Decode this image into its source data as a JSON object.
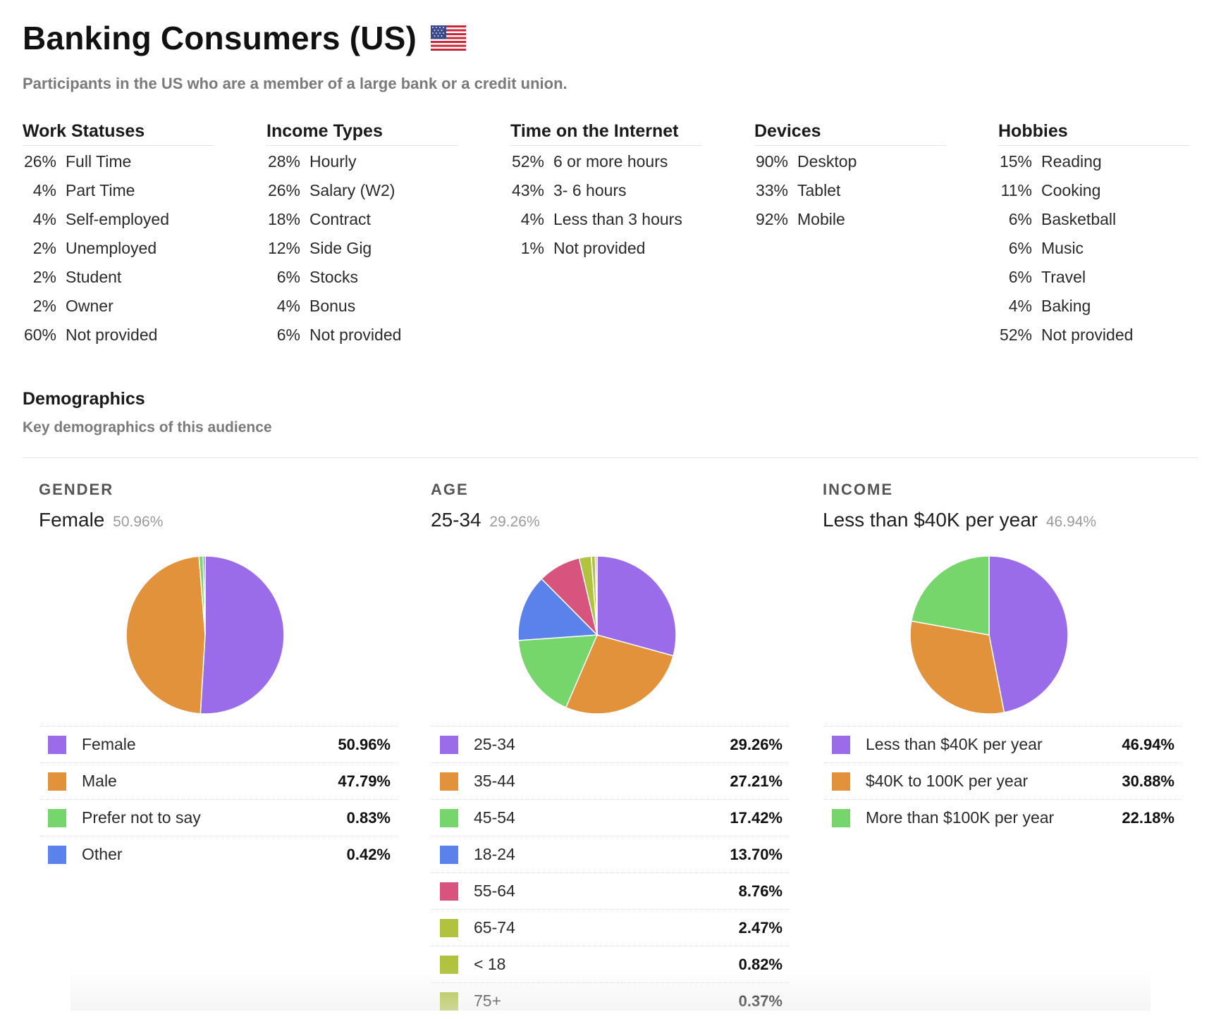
{
  "header": {
    "title": "Banking Consumers (US)",
    "flag_icon": "us-flag-icon",
    "subtitle": "Participants in the US who are a member of a large bank or a credit union."
  },
  "stats": [
    {
      "title": "Work Statuses",
      "rows": [
        {
          "pct": "26%",
          "label": "Full Time"
        },
        {
          "pct": "4%",
          "label": "Part Time"
        },
        {
          "pct": "4%",
          "label": "Self-employed"
        },
        {
          "pct": "2%",
          "label": "Unemployed"
        },
        {
          "pct": "2%",
          "label": "Student"
        },
        {
          "pct": "2%",
          "label": "Owner"
        },
        {
          "pct": "60%",
          "label": "Not provided"
        }
      ]
    },
    {
      "title": "Income Types",
      "rows": [
        {
          "pct": "28%",
          "label": "Hourly"
        },
        {
          "pct": "26%",
          "label": "Salary (W2)"
        },
        {
          "pct": "18%",
          "label": "Contract"
        },
        {
          "pct": "12%",
          "label": "Side Gig"
        },
        {
          "pct": "6%",
          "label": "Stocks"
        },
        {
          "pct": "4%",
          "label": "Bonus"
        },
        {
          "pct": "6%",
          "label": "Not provided"
        }
      ]
    },
    {
      "title": "Time on the Internet",
      "rows": [
        {
          "pct": "52%",
          "label": "6 or more hours"
        },
        {
          "pct": "43%",
          "label": "3- 6 hours"
        },
        {
          "pct": "4%",
          "label": "Less than 3 hours"
        },
        {
          "pct": "1%",
          "label": "Not provided"
        }
      ]
    },
    {
      "title": "Devices",
      "rows": [
        {
          "pct": "90%",
          "label": "Desktop"
        },
        {
          "pct": "33%",
          "label": "Tablet"
        },
        {
          "pct": "92%",
          "label": "Mobile"
        }
      ]
    },
    {
      "title": "Hobbies",
      "rows": [
        {
          "pct": "15%",
          "label": "Reading"
        },
        {
          "pct": "11%",
          "label": "Cooking"
        },
        {
          "pct": "6%",
          "label": "Basketball"
        },
        {
          "pct": "6%",
          "label": "Music"
        },
        {
          "pct": "6%",
          "label": "Travel"
        },
        {
          "pct": "4%",
          "label": "Baking"
        },
        {
          "pct": "52%",
          "label": "Not provided"
        }
      ]
    }
  ],
  "demographics": {
    "title": "Demographics",
    "subtitle": "Key demographics of this audience"
  },
  "panels": [
    {
      "heading": "GENDER",
      "top_label": "Female",
      "top_pct": "50.96%"
    },
    {
      "heading": "AGE",
      "top_label": "25-34",
      "top_pct": "29.26%"
    },
    {
      "heading": "INCOME",
      "top_label": "Less than $40K per year",
      "top_pct": "46.94%"
    }
  ],
  "chart_data": [
    {
      "type": "pie",
      "categories": [
        "Female",
        "Male",
        "Prefer not to say",
        "Other"
      ],
      "labels": [
        "50.96%",
        "47.79%",
        "0.83%",
        "0.42%"
      ],
      "values": [
        50.96,
        47.79,
        0.83,
        0.42
      ],
      "colors": [
        "#9b6cea",
        "#e2923a",
        "#77d66b",
        "#5b82ea"
      ]
    },
    {
      "type": "pie",
      "categories": [
        "25-34",
        "35-44",
        "45-54",
        "18-24",
        "55-64",
        "65-74",
        "< 18",
        "75+"
      ],
      "labels": [
        "29.26%",
        "27.21%",
        "17.42%",
        "13.70%",
        "8.76%",
        "2.47%",
        "0.82%",
        "0.37%"
      ],
      "values": [
        29.26,
        27.21,
        17.42,
        13.7,
        8.76,
        2.47,
        0.82,
        0.37
      ],
      "colors": [
        "#9b6cea",
        "#e2923a",
        "#77d66b",
        "#5b82ea",
        "#d6547d",
        "#b1c23f",
        "#b1c23f",
        "#b1c23f"
      ]
    },
    {
      "type": "pie",
      "categories": [
        "Less than $40K per year",
        "$40K to 100K per year",
        "More than $100K per year"
      ],
      "labels": [
        "46.94%",
        "30.88%",
        "22.18%"
      ],
      "values": [
        46.94,
        30.88,
        22.18
      ],
      "colors": [
        "#9b6cea",
        "#e2923a",
        "#77d66b"
      ]
    }
  ]
}
